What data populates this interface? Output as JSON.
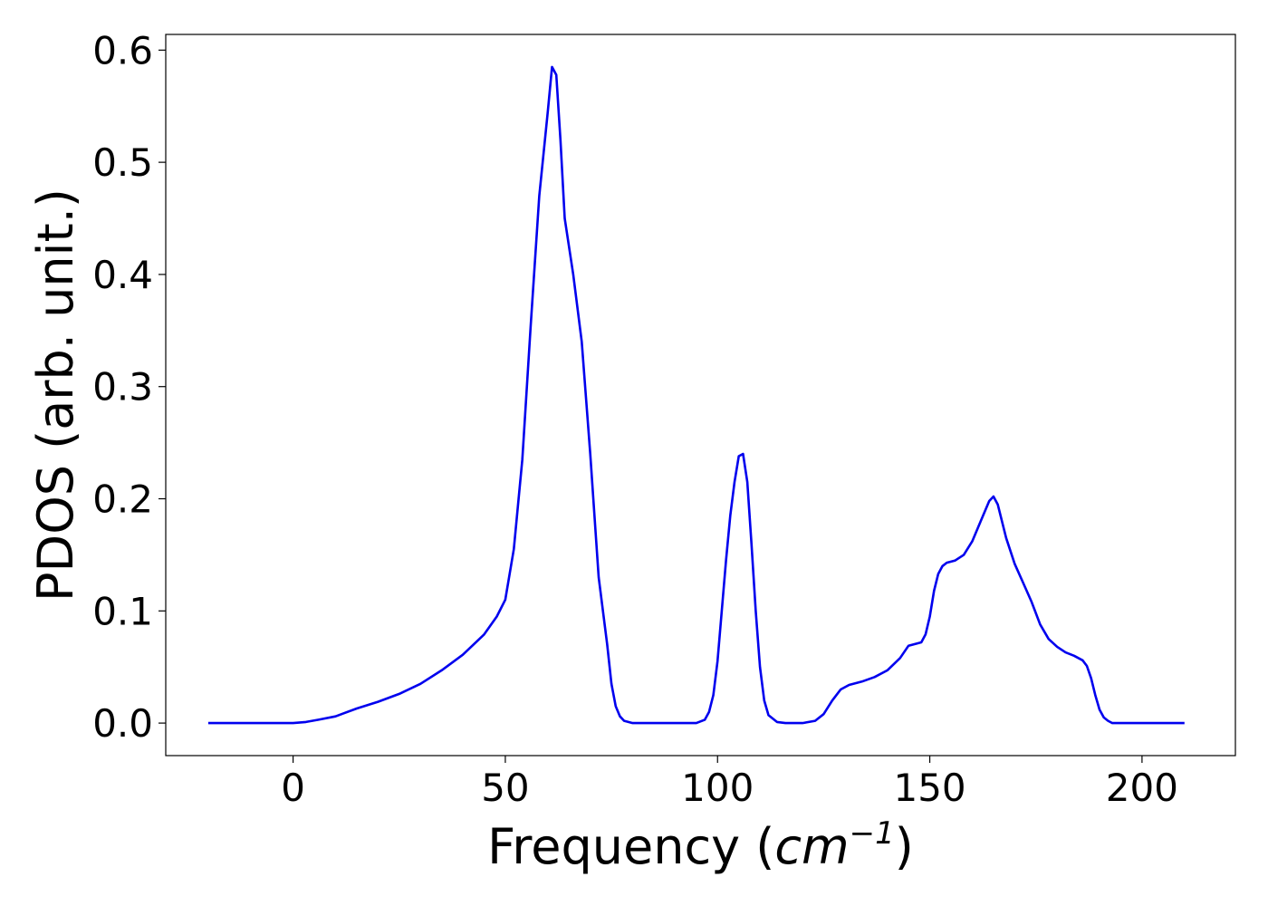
{
  "chart_data": {
    "type": "line",
    "xlabel_prefix": "Frequency (",
    "xlabel_var": "cm",
    "xlabel_exp": "−1",
    "xlabel_suffix": ")",
    "ylabel": "PDOS (arb. unit.)",
    "xlim": [
      -30,
      222
    ],
    "ylim": [
      -0.029,
      0.614
    ],
    "xticks": [
      0,
      50,
      100,
      150,
      200
    ],
    "yticks": [
      0.0,
      0.1,
      0.2,
      0.3,
      0.4,
      0.5,
      0.6
    ],
    "xtick_labels": [
      "0",
      "50",
      "100",
      "150",
      "200"
    ],
    "ytick_labels": [
      "0.0",
      "0.1",
      "0.2",
      "0.3",
      "0.4",
      "0.5",
      "0.6"
    ],
    "grid": false,
    "legend": "none",
    "series": [
      {
        "color": "#0000ee",
        "x": [
          -20,
          -10,
          0,
          3,
          6,
          10,
          15,
          20,
          25,
          30,
          35,
          40,
          45,
          48,
          50,
          52,
          54,
          56,
          58,
          60,
          61,
          62,
          63,
          64,
          66,
          68,
          70,
          72,
          74,
          75,
          76,
          77,
          78,
          80,
          85,
          90,
          95,
          97,
          98,
          99,
          100,
          101,
          102,
          103,
          104,
          105,
          106,
          107,
          108,
          109,
          110,
          111,
          112,
          114,
          116,
          120,
          123,
          125,
          127,
          129,
          131,
          134,
          137,
          140,
          143,
          145,
          147,
          148,
          149,
          150,
          151,
          152,
          153,
          154,
          156,
          158,
          160,
          162,
          164,
          165,
          166,
          168,
          170,
          172,
          174,
          176,
          178,
          180,
          182,
          184,
          186,
          187,
          188,
          189,
          190,
          191,
          192,
          193,
          195,
          200,
          210
        ],
        "y": [
          0.0,
          0.0,
          0.0,
          0.001,
          0.003,
          0.006,
          0.013,
          0.019,
          0.026,
          0.035,
          0.047,
          0.061,
          0.079,
          0.095,
          0.11,
          0.155,
          0.235,
          0.355,
          0.47,
          0.545,
          0.585,
          0.578,
          0.52,
          0.45,
          0.4,
          0.34,
          0.24,
          0.13,
          0.07,
          0.035,
          0.015,
          0.006,
          0.002,
          0.0,
          0.0,
          0.0,
          0.0,
          0.003,
          0.01,
          0.025,
          0.055,
          0.1,
          0.145,
          0.185,
          0.215,
          0.238,
          0.24,
          0.215,
          0.16,
          0.1,
          0.05,
          0.02,
          0.007,
          0.001,
          0.0,
          0.0,
          0.002,
          0.008,
          0.02,
          0.03,
          0.034,
          0.037,
          0.041,
          0.047,
          0.058,
          0.069,
          0.071,
          0.072,
          0.079,
          0.095,
          0.118,
          0.133,
          0.14,
          0.143,
          0.145,
          0.15,
          0.162,
          0.18,
          0.198,
          0.202,
          0.195,
          0.165,
          0.142,
          0.125,
          0.108,
          0.088,
          0.075,
          0.068,
          0.063,
          0.06,
          0.056,
          0.051,
          0.04,
          0.025,
          0.012,
          0.005,
          0.002,
          0.0,
          0.0,
          0.0,
          0.0
        ]
      }
    ]
  }
}
